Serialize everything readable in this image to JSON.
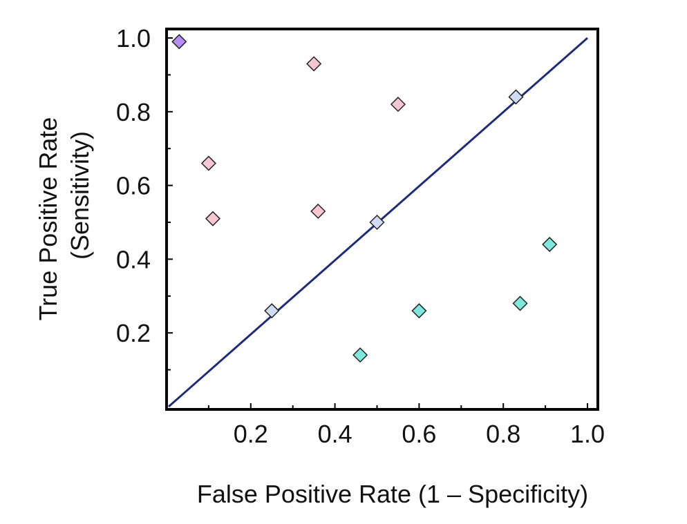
{
  "chart_data": {
    "type": "scatter",
    "xlabel": "False Positive Rate (1 – Specificity)",
    "ylabel": [
      "True Positive Rate",
      "(Sensitivity)"
    ],
    "xlim": [
      0,
      1
    ],
    "ylim": [
      0,
      1
    ],
    "x_ticks": [
      "0.2",
      "0.4",
      "0.6",
      "0.8",
      "1.0"
    ],
    "y_ticks": [
      "0.2",
      "0.4",
      "0.6",
      "0.8",
      "1.0"
    ],
    "grid": false,
    "reference_line": {
      "from": [
        0,
        0
      ],
      "to": [
        1,
        1
      ],
      "color": "#1f2a7a"
    },
    "series": [
      {
        "color": "#b48ef0",
        "points": [
          [
            0.03,
            0.99
          ]
        ]
      },
      {
        "color": "#f7c6d3",
        "points": [
          [
            0.35,
            0.93
          ],
          [
            0.55,
            0.82
          ],
          [
            0.1,
            0.66
          ],
          [
            0.11,
            0.51
          ],
          [
            0.36,
            0.53
          ]
        ]
      },
      {
        "color": "#cfdcf4",
        "points": [
          [
            0.83,
            0.84
          ],
          [
            0.5,
            0.5
          ],
          [
            0.25,
            0.26
          ]
        ]
      },
      {
        "color": "#7fe8dc",
        "points": [
          [
            0.91,
            0.44
          ],
          [
            0.84,
            0.28
          ],
          [
            0.6,
            0.26
          ],
          [
            0.46,
            0.14
          ]
        ]
      }
    ]
  }
}
